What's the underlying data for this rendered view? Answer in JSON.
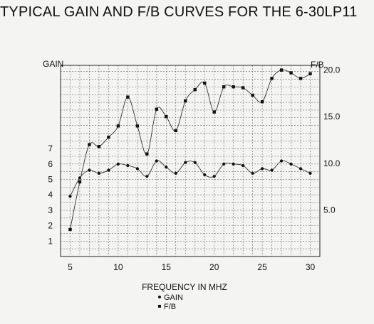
{
  "chart_data": {
    "type": "line",
    "title": "TYPICAL GAIN AND F/B CURVES FOR THE 6-30LP11",
    "xlabel": "FREQUENCY IN MHZ",
    "ylabel_left": "GAIN",
    "ylabel_right": "F/B",
    "x_ticks": [
      5,
      10,
      15,
      20,
      25,
      30
    ],
    "y_left_ticks": [
      1,
      2,
      3,
      4,
      5,
      6,
      7
    ],
    "y_right_ticks": [
      "5.0",
      "10.0",
      "15.0",
      "20.0"
    ],
    "xlim": [
      4,
      31
    ],
    "ylim_left": [
      0,
      12.4
    ],
    "ylim_right": [
      0,
      20.5
    ],
    "grid": true,
    "legend_position": "bottom-center",
    "x": [
      5,
      6,
      7,
      8,
      9,
      10,
      11,
      12,
      13,
      14,
      15,
      16,
      17,
      18,
      19,
      20,
      21,
      22,
      23,
      24,
      25,
      26,
      27,
      28,
      29,
      30
    ],
    "series": [
      {
        "name": "GAIN",
        "axis": "left",
        "marker": "dot",
        "values": [
          3.9,
          5.1,
          5.6,
          5.4,
          5.6,
          6.0,
          5.9,
          5.7,
          5.2,
          6.2,
          5.8,
          5.4,
          6.1,
          6.1,
          5.3,
          5.2,
          6.0,
          6.0,
          5.9,
          5.4,
          5.7,
          5.6,
          6.2,
          6.0,
          5.7,
          5.4
        ]
      },
      {
        "name": "F/B",
        "axis": "right",
        "marker": "square",
        "values": [
          2.9,
          8.0,
          12.0,
          11.8,
          12.8,
          14.0,
          17.1,
          14.0,
          11.0,
          15.8,
          15.0,
          13.5,
          16.7,
          17.9,
          18.6,
          15.5,
          18.2,
          18.2,
          18.1,
          17.3,
          16.6,
          19.1,
          20.0,
          19.7,
          19.1,
          19.6
        ]
      }
    ]
  }
}
